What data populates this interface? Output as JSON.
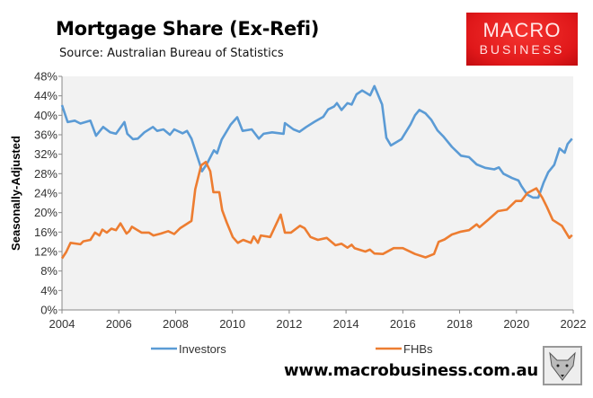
{
  "chart_data": {
    "type": "line",
    "title": "Mortgage Share (Ex-Refi)",
    "subtitle": "Source: Australian Bureau of Statistics",
    "ylabel": "Seasonally-Adjusted",
    "xlabel": "",
    "xlim": [
      2004,
      2022
    ],
    "ylim": [
      0,
      48
    ],
    "x_ticks": [
      "2004",
      "2006",
      "2008",
      "2010",
      "2012",
      "2014",
      "2016",
      "2018",
      "2020",
      "2022"
    ],
    "y_ticks": [
      "0%",
      "4%",
      "8%",
      "12%",
      "16%",
      "20%",
      "24%",
      "28%",
      "32%",
      "36%",
      "40%",
      "44%",
      "48%"
    ],
    "grid": false,
    "legend_position": "bottom",
    "series": [
      {
        "name": "Investors",
        "color": "#5b9bd5",
        "x": [
          2004.0,
          2004.2,
          2004.45,
          2004.65,
          2005.0,
          2005.2,
          2005.45,
          2005.7,
          2005.9,
          2006.2,
          2006.3,
          2006.5,
          2006.67,
          2006.9,
          2007.2,
          2007.35,
          2007.57,
          2007.8,
          2007.95,
          2008.25,
          2008.4,
          2008.56,
          2008.87,
          2008.93,
          2009.1,
          2009.35,
          2009.46,
          2009.62,
          2009.94,
          2010.17,
          2010.36,
          2010.68,
          2010.93,
          2011.1,
          2011.4,
          2011.8,
          2011.85,
          2012.15,
          2012.36,
          2012.6,
          2012.9,
          2013.2,
          2013.37,
          2013.58,
          2013.68,
          2013.84,
          2014.05,
          2014.2,
          2014.37,
          2014.57,
          2014.85,
          2015.0,
          2015.27,
          2015.42,
          2015.58,
          2015.95,
          2016.27,
          2016.43,
          2016.58,
          2016.8,
          2017.0,
          2017.22,
          2017.42,
          2017.73,
          2018.05,
          2018.33,
          2018.6,
          2018.9,
          2019.22,
          2019.38,
          2019.54,
          2019.85,
          2020.07,
          2020.17,
          2020.38,
          2020.58,
          2020.77,
          2020.96,
          2021.12,
          2021.33,
          2021.52,
          2021.7,
          2021.8,
          2021.96
        ],
        "values": [
          42.1,
          38.6,
          38.9,
          38.3,
          38.9,
          35.8,
          37.6,
          36.5,
          36.2,
          38.6,
          36.2,
          35.1,
          35.2,
          36.5,
          37.6,
          36.8,
          37.1,
          36.0,
          37.1,
          36.3,
          36.8,
          35.2,
          29.7,
          28.5,
          30.0,
          32.8,
          32.2,
          35.0,
          38.1,
          39.6,
          36.8,
          37.1,
          35.2,
          36.2,
          36.5,
          36.2,
          38.4,
          37.1,
          36.6,
          37.6,
          38.7,
          39.7,
          41.2,
          41.8,
          42.5,
          41.1,
          42.5,
          42.2,
          44.3,
          45.1,
          44.1,
          46.0,
          42.2,
          35.4,
          33.8,
          35.1,
          38.1,
          40.0,
          41.1,
          40.4,
          39.1,
          36.9,
          35.7,
          33.5,
          31.7,
          31.4,
          29.9,
          29.2,
          28.9,
          29.3,
          28.0,
          27.1,
          26.6,
          25.5,
          23.7,
          23.1,
          23.1,
          26.2,
          28.3,
          29.8,
          33.2,
          32.3,
          34.1,
          35.2
        ]
      },
      {
        "name": "FHBs",
        "color": "#ed7d31",
        "x": [
          2004.0,
          2004.15,
          2004.3,
          2004.65,
          2004.75,
          2005.0,
          2005.16,
          2005.32,
          2005.42,
          2005.58,
          2005.74,
          2005.9,
          2006.06,
          2006.27,
          2006.37,
          2006.46,
          2006.8,
          2007.06,
          2007.22,
          2007.48,
          2007.74,
          2007.95,
          2008.16,
          2008.48,
          2008.56,
          2008.69,
          2008.9,
          2009.06,
          2009.22,
          2009.33,
          2009.54,
          2009.64,
          2009.8,
          2010.01,
          2010.19,
          2010.38,
          2010.65,
          2010.75,
          2010.9,
          2011.0,
          2011.33,
          2011.54,
          2011.7,
          2011.85,
          2012.06,
          2012.38,
          2012.54,
          2012.75,
          2013.01,
          2013.32,
          2013.63,
          2013.84,
          2014.05,
          2014.2,
          2014.3,
          2014.68,
          2014.84,
          2015.0,
          2015.3,
          2015.68,
          2016.0,
          2016.43,
          2016.8,
          2017.1,
          2017.26,
          2017.47,
          2017.73,
          2018.05,
          2018.33,
          2018.6,
          2018.7,
          2019.0,
          2019.35,
          2019.66,
          2019.98,
          2020.17,
          2020.38,
          2020.7,
          2020.91,
          2021.07,
          2021.28,
          2021.6,
          2021.86,
          2021.96
        ],
        "values": [
          10.6,
          11.9,
          13.8,
          13.5,
          14.1,
          14.4,
          15.9,
          15.3,
          16.5,
          15.9,
          16.7,
          16.4,
          17.8,
          15.7,
          16.2,
          17.1,
          15.9,
          15.9,
          15.3,
          15.7,
          16.2,
          15.6,
          16.8,
          18.0,
          18.3,
          24.8,
          29.7,
          30.4,
          28.5,
          24.2,
          24.2,
          20.5,
          18.0,
          15.0,
          13.8,
          14.4,
          13.8,
          15.1,
          13.8,
          15.3,
          15.0,
          17.6,
          19.6,
          15.9,
          15.9,
          17.3,
          16.8,
          15.0,
          14.4,
          14.8,
          13.3,
          13.6,
          12.8,
          13.4,
          12.7,
          12.0,
          12.4,
          11.6,
          11.5,
          12.7,
          12.7,
          11.5,
          10.8,
          11.5,
          14.0,
          14.5,
          15.5,
          16.1,
          16.4,
          17.6,
          17.0,
          18.5,
          20.3,
          20.6,
          22.4,
          22.4,
          24.0,
          25.0,
          23.1,
          21.2,
          18.5,
          17.3,
          14.8,
          15.4
        ]
      }
    ]
  },
  "logo": {
    "line1": "MACRO",
    "line2": "BUSINESS"
  },
  "footer": {
    "url": "www.macrobusiness.com.au"
  },
  "fox_image": "fox-sketch-icon"
}
